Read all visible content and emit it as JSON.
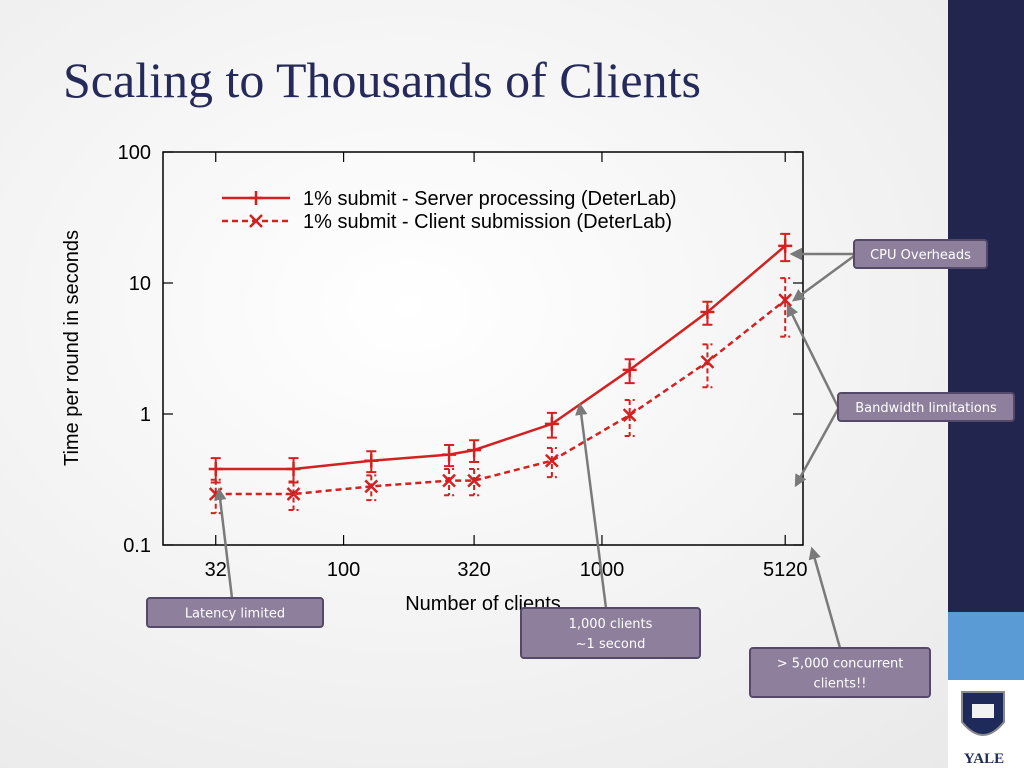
{
  "slide": {
    "title": "Scaling to Thousands of Clients",
    "logo_text": "YALE"
  },
  "chart_data": {
    "type": "line",
    "x_label": "Number of clients",
    "y_label": "Time per round in seconds",
    "x": [
      32,
      64,
      128,
      256,
      320,
      640,
      1280,
      2560,
      5120
    ],
    "series": [
      {
        "name": "1% submit - Server processing (DeterLab)",
        "color": "#d42020",
        "style": "solid",
        "marker": "plus",
        "values": [
          0.38,
          0.38,
          0.44,
          0.49,
          0.53,
          0.84,
          2.17,
          6.0,
          19.2
        ],
        "errors": [
          0.08,
          0.08,
          0.08,
          0.09,
          0.1,
          0.18,
          0.45,
          1.2,
          4.5
        ]
      },
      {
        "name": "1% submit - Client submission (DeterLab)",
        "color": "#d42020",
        "style": "dashed",
        "marker": "x",
        "values": [
          0.245,
          0.245,
          0.28,
          0.31,
          0.31,
          0.44,
          0.98,
          2.5,
          7.4
        ],
        "errors": [
          0.07,
          0.06,
          0.06,
          0.07,
          0.07,
          0.11,
          0.3,
          0.9,
          3.5
        ]
      }
    ],
    "xscale": "log",
    "yscale": "log",
    "xlim": [
      20,
      6000
    ],
    "ylim": [
      0.1,
      100
    ],
    "xticks": [
      32,
      100,
      320,
      1000,
      5120
    ],
    "yticks": [
      0.1,
      1,
      10,
      100
    ],
    "grid": false,
    "legend": "upper-left"
  },
  "callouts": [
    {
      "lines": [
        "CPU Overheads"
      ]
    },
    {
      "lines": [
        "Bandwidth limitations"
      ]
    },
    {
      "lines": [
        "Latency limited"
      ]
    },
    {
      "lines": [
        "1,000 clients",
        "~1 second"
      ]
    },
    {
      "lines": [
        "> 5,000 concurrent",
        "clients!!"
      ]
    }
  ]
}
